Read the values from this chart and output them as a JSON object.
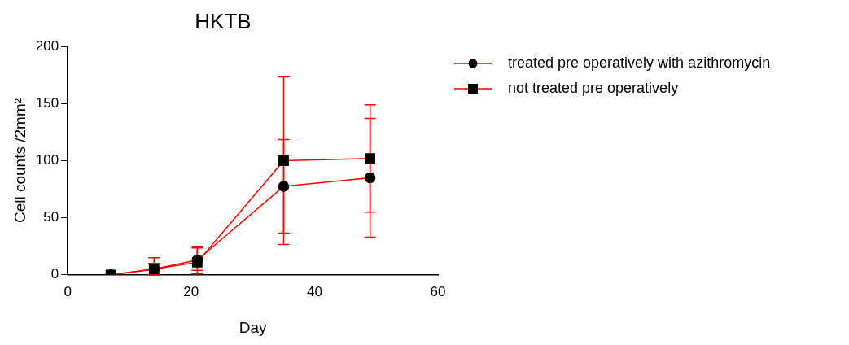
{
  "chart_data": {
    "type": "line",
    "title": "HKTB",
    "xlabel": "Day",
    "ylabel": "Cell counts /2mm²",
    "xlim": [
      0,
      60
    ],
    "xticks": [
      0,
      20,
      40,
      60
    ],
    "ylim": [
      0,
      200
    ],
    "yticks": [
      0,
      50,
      100,
      150,
      200
    ],
    "grid": false,
    "legend": "top right",
    "x": [
      7,
      14,
      21,
      35,
      49
    ],
    "series": [
      {
        "name": "treated pre operatively with azithromycin",
        "color": "#ff0000",
        "marker": "circle",
        "values": [
          0,
          5,
          13,
          77.5,
          85
        ],
        "errors": [
          null,
          [
            0,
            15
          ],
          12,
          41,
          52
        ]
      },
      {
        "name": "not treated pre operatively",
        "color": "#ff0000",
        "marker": "square",
        "values": [
          0,
          5,
          11,
          100,
          102
        ],
        "errors": [
          null,
          [
            0,
            10
          ],
          [
            4,
            23.5
          ],
          73.5,
          47
        ]
      }
    ]
  }
}
